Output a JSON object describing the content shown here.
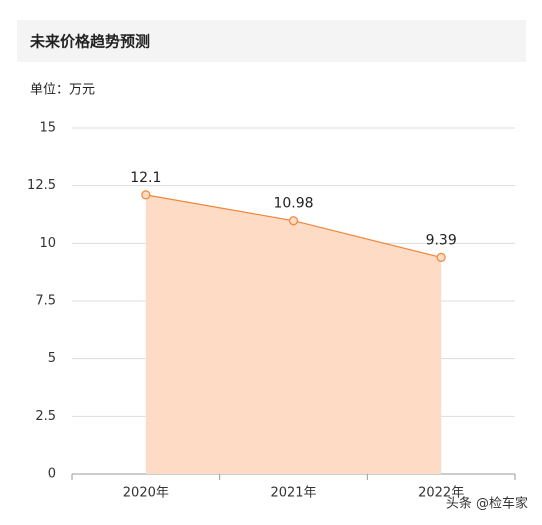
{
  "header": {
    "title": "未来价格趋势预测"
  },
  "unit": "单位：万元",
  "chart_data": {
    "type": "area",
    "categories": [
      "2020年",
      "2021年",
      "2022年"
    ],
    "values": [
      12.1,
      10.98,
      9.39
    ],
    "color": "#f0873c",
    "area_color": "#fddbc4",
    "ylim": [
      0,
      15
    ],
    "yticks": [
      0,
      2.5,
      5,
      7.5,
      10,
      12.5,
      15
    ],
    "grid": true
  },
  "watermark": "头条 @检车家"
}
